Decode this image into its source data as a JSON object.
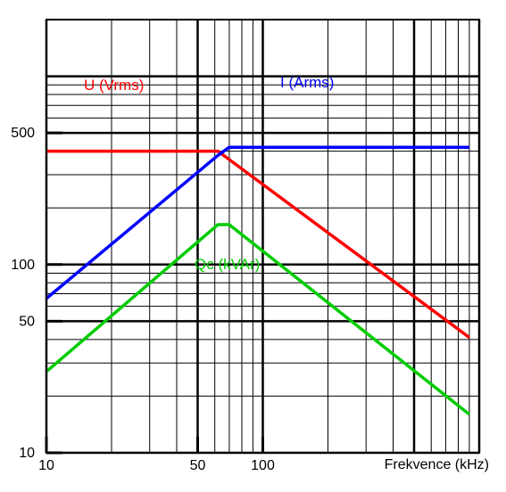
{
  "chart_data": {
    "type": "line",
    "xscale": "log",
    "yscale": "log",
    "xlim": [
      10,
      1000
    ],
    "ylim": [
      10,
      2000
    ],
    "xlabel": "Frekvence (kHz)",
    "ylabel": "",
    "grid": true,
    "x_ticks": [
      {
        "value": 10,
        "label": "10"
      },
      {
        "value": 50,
        "label": "50"
      },
      {
        "value": 100,
        "label": "100"
      }
    ],
    "y_ticks": [
      {
        "value": 10,
        "label": "10"
      },
      {
        "value": 50,
        "label": "50"
      },
      {
        "value": 100,
        "label": "100"
      },
      {
        "value": 500,
        "label": "500"
      }
    ],
    "series": [
      {
        "name": "U (Vrms)",
        "color": "#ff0000",
        "x": [
          10,
          62,
          900
        ],
        "y": [
          400,
          400,
          41
        ]
      },
      {
        "name": "I (Arms)",
        "color": "#0000ff",
        "x": [
          10,
          62,
          70,
          900
        ],
        "y": [
          66,
          380,
          420,
          420
        ]
      },
      {
        "name": "Qc (kVAr)",
        "color": "#00cc00",
        "x": [
          10,
          62,
          70,
          900
        ],
        "y": [
          27,
          163,
          163,
          16
        ]
      }
    ]
  }
}
